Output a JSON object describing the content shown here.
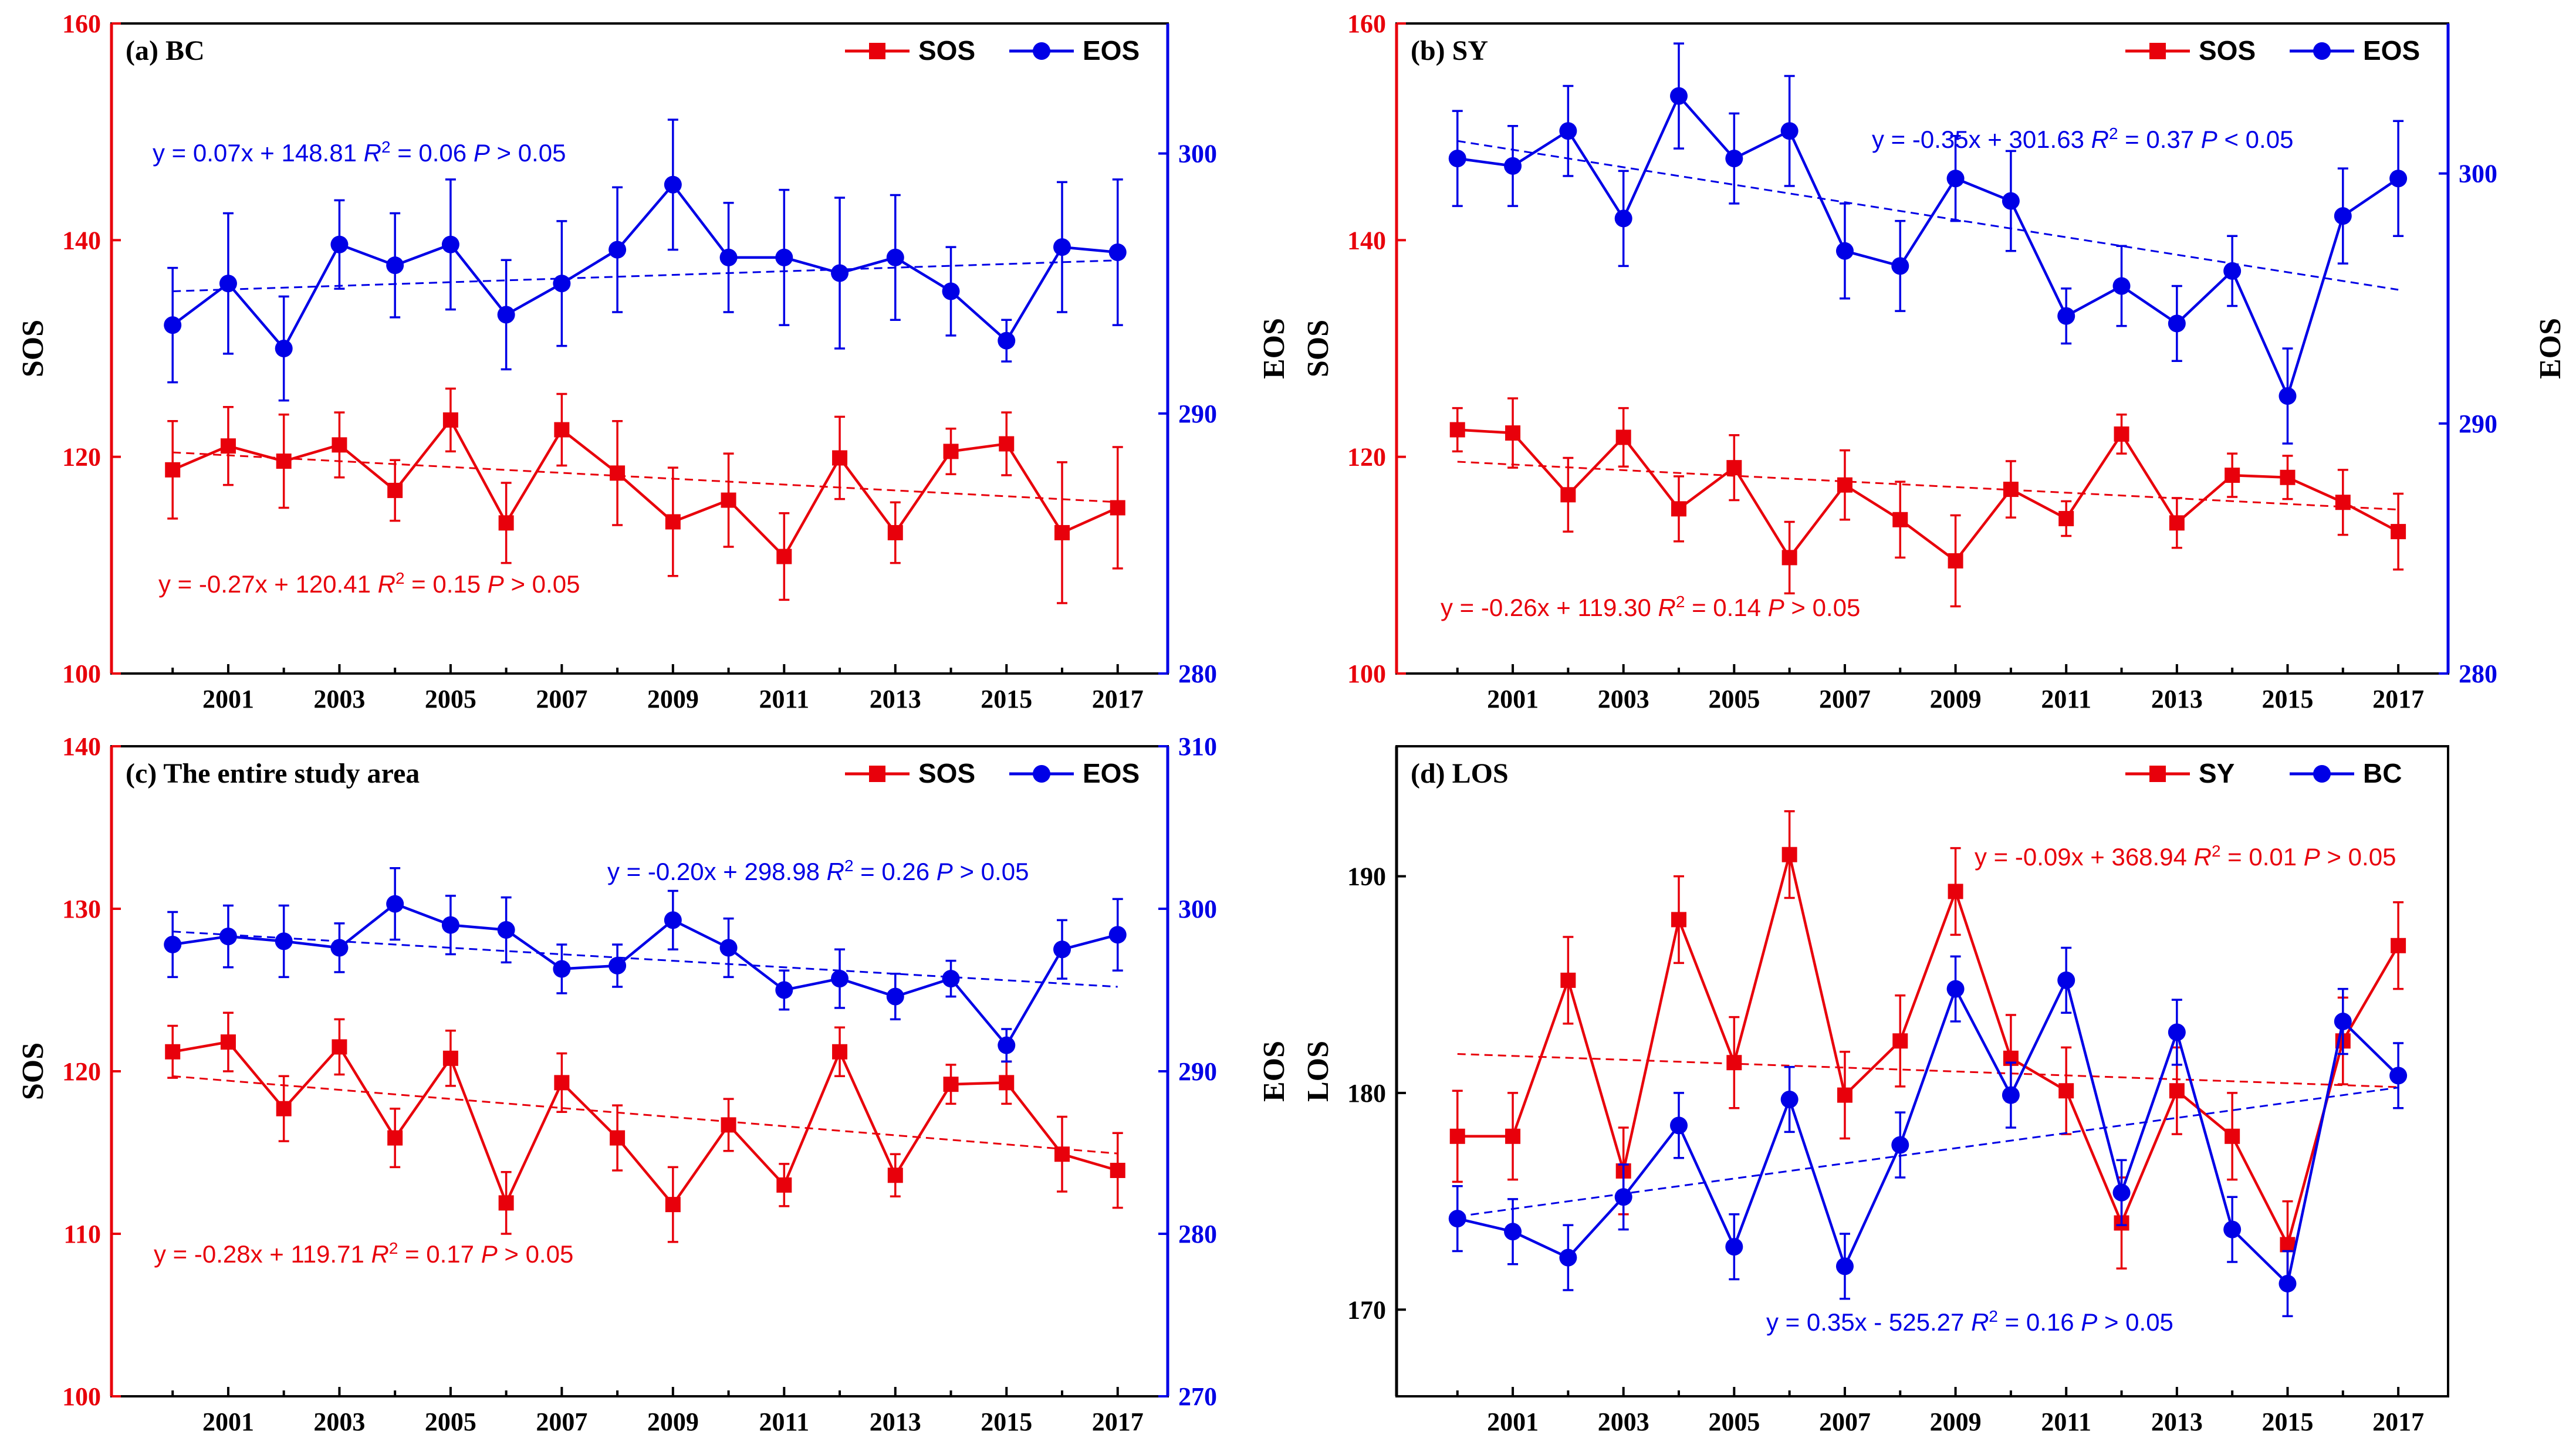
{
  "figure": {
    "panels": [
      {
        "id": "a",
        "title": "(a) BC",
        "chart_data": {
          "type": "line",
          "title": "(a) BC",
          "x": [
            2000,
            2001,
            2002,
            2003,
            2004,
            2005,
            2006,
            2007,
            2008,
            2009,
            2010,
            2011,
            2012,
            2013,
            2014,
            2015,
            2016,
            2017
          ],
          "xticks": [
            2001,
            2003,
            2005,
            2007,
            2009,
            2011,
            2013,
            2015,
            2017
          ],
          "xlim": [
            1998.9,
            2017.9
          ],
          "left_axis": {
            "label": "SOS",
            "ylim": [
              100,
              160
            ],
            "ticks": [
              100,
              120,
              140,
              160
            ],
            "color": "#e8000b"
          },
          "right_axis": {
            "label": "EOS",
            "ylim": [
              280,
              305
            ],
            "ticks": [
              280,
              290,
              300
            ],
            "color": "#0000e6"
          },
          "series": [
            {
              "name": "SOS",
              "axis": "left",
              "color": "#e8000b",
              "marker": "square",
              "values": [
                118.8,
                121.0,
                119.6,
                121.1,
                116.9,
                123.4,
                113.9,
                122.5,
                118.5,
                114.0,
                116.0,
                110.8,
                119.9,
                113.0,
                120.5,
                121.2,
                113.0,
                115.3
              ],
              "errors": [
                4.5,
                3.6,
                4.3,
                3.0,
                2.8,
                2.9,
                3.7,
                3.3,
                4.8,
                5.0,
                4.3,
                4.0,
                3.8,
                2.8,
                2.1,
                2.9,
                6.5,
                5.6
              ],
              "trend": {
                "slope": -0.27,
                "intercept_at_2000": 120.41
              }
            },
            {
              "name": "EOS",
              "axis": "right",
              "color": "#0000e6",
              "marker": "circle",
              "values": [
                293.4,
                295.0,
                292.5,
                296.5,
                295.7,
                296.5,
                293.8,
                295.0,
                296.3,
                298.8,
                296.0,
                296.0,
                295.4,
                296.0,
                294.7,
                292.8,
                296.4,
                296.2
              ],
              "errors": [
                2.2,
                2.7,
                2.0,
                1.7,
                2.0,
                2.5,
                2.1,
                2.4,
                2.4,
                2.5,
                2.1,
                2.6,
                2.9,
                2.4,
                1.7,
                0.8,
                2.5,
                2.8
              ],
              "trend": {
                "slope": 0.07,
                "intercept_at_2000": 294.7
              }
            }
          ],
          "legend": [
            "SOS",
            "EOS"
          ],
          "legend_position": "top-right",
          "annotations": [
            {
              "series": "EOS",
              "equation": "y = 0.07x + 148.81",
              "r2_label": "R",
              "r2_sup": "2",
              "r2_value": " = 0.06 ",
              "p_label": "P",
              "p_value": " > 0.05",
              "color": "#0000e6"
            },
            {
              "series": "SOS",
              "equation": "y = -0.27x + 120.41",
              "r2_label": "R",
              "r2_sup": "2",
              "r2_value": " = 0.15 ",
              "p_label": "P",
              "p_value": " > 0.05",
              "color": "#e8000b"
            }
          ]
        }
      },
      {
        "id": "b",
        "title": "(b) SY",
        "chart_data": {
          "type": "line",
          "title": "(b) SY",
          "x": [
            2000,
            2001,
            2002,
            2003,
            2004,
            2005,
            2006,
            2007,
            2008,
            2009,
            2010,
            2011,
            2012,
            2013,
            2014,
            2015,
            2016,
            2017
          ],
          "xticks": [
            2001,
            2003,
            2005,
            2007,
            2009,
            2011,
            2013,
            2015,
            2017
          ],
          "xlim": [
            1998.9,
            2017.9
          ],
          "left_axis": {
            "label": "SOS",
            "ylim": [
              100,
              160
            ],
            "ticks": [
              100,
              120,
              140,
              160
            ],
            "color": "#e8000b"
          },
          "right_axis": {
            "label": "EOS",
            "ylim": [
              280,
              306
            ],
            "ticks": [
              280,
              290,
              300
            ],
            "color": "#0000e6"
          },
          "series": [
            {
              "name": "SOS",
              "axis": "left",
              "color": "#e8000b",
              "marker": "square",
              "values": [
                122.5,
                122.2,
                116.5,
                121.8,
                115.2,
                119.0,
                110.7,
                117.4,
                114.2,
                110.4,
                117.0,
                114.3,
                122.1,
                113.9,
                118.3,
                118.1,
                115.8,
                113.1
              ],
              "errors": [
                2.0,
                3.2,
                3.4,
                2.7,
                3.0,
                3.0,
                3.3,
                3.2,
                3.5,
                4.2,
                2.6,
                1.6,
                1.8,
                2.3,
                2.0,
                2.0,
                3.0,
                3.5
              ],
              "trend": {
                "slope": -0.26,
                "intercept_at_2000": 119.55
              }
            },
            {
              "name": "EOS",
              "axis": "right",
              "color": "#0000e6",
              "marker": "circle",
              "values": [
                300.6,
                300.3,
                301.7,
                298.2,
                303.1,
                300.6,
                301.7,
                296.9,
                296.3,
                299.8,
                298.9,
                294.3,
                295.5,
                294.0,
                296.1,
                291.1,
                298.3,
                299.8
              ],
              "errors": [
                1.9,
                1.6,
                1.8,
                1.9,
                2.1,
                1.8,
                2.2,
                1.9,
                1.8,
                1.7,
                2.0,
                1.1,
                1.6,
                1.5,
                1.4,
                1.9,
                1.9,
                2.3
              ],
              "trend": {
                "slope": -0.35,
                "intercept_at_2000": 301.3
              }
            }
          ],
          "legend": [
            "SOS",
            "EOS"
          ],
          "legend_position": "top-right",
          "annotations": [
            {
              "series": "EOS",
              "equation": "y = -0.35x + 301.63",
              "r2_label": "R",
              "r2_sup": "2",
              "r2_value": " = 0.37 ",
              "p_label": "P",
              "p_value": " < 0.05",
              "color": "#0000e6"
            },
            {
              "series": "SOS",
              "equation": "y = -0.26x + 119.30",
              "r2_label": "R",
              "r2_sup": "2",
              "r2_value": " = 0.14 ",
              "p_label": "P",
              "p_value": " > 0.05",
              "color": "#e8000b"
            }
          ]
        }
      },
      {
        "id": "c",
        "title": "(c) The entire study area",
        "chart_data": {
          "type": "line",
          "title": "(c) The entire study area",
          "x": [
            2000,
            2001,
            2002,
            2003,
            2004,
            2005,
            2006,
            2007,
            2008,
            2009,
            2010,
            2011,
            2012,
            2013,
            2014,
            2015,
            2016,
            2017
          ],
          "xticks": [
            2001,
            2003,
            2005,
            2007,
            2009,
            2011,
            2013,
            2015,
            2017
          ],
          "xlim": [
            1998.9,
            2017.9
          ],
          "left_axis": {
            "label": "SOS",
            "ylim": [
              100,
              140
            ],
            "ticks": [
              100,
              110,
              120,
              130,
              140
            ],
            "color": "#e8000b"
          },
          "right_axis": {
            "label": "EOS",
            "ylim": [
              270,
              310
            ],
            "ticks": [
              270,
              280,
              290,
              300,
              310
            ],
            "color": "#0000e6"
          },
          "series": [
            {
              "name": "SOS",
              "axis": "left",
              "color": "#e8000b",
              "marker": "square",
              "values": [
                121.2,
                121.8,
                117.7,
                121.5,
                115.9,
                120.8,
                111.9,
                119.3,
                115.9,
                111.8,
                116.7,
                113.0,
                121.2,
                113.6,
                119.2,
                119.3,
                114.9,
                113.9
              ],
              "errors": [
                1.6,
                1.8,
                2.0,
                1.7,
                1.8,
                1.7,
                1.9,
                1.8,
                2.0,
                2.3,
                1.6,
                1.3,
                1.5,
                1.3,
                1.2,
                1.3,
                2.3,
                2.3
              ],
              "trend": {
                "slope": -0.28,
                "intercept_at_2000": 119.7
              }
            },
            {
              "name": "EOS",
              "axis": "right",
              "color": "#0000e6",
              "marker": "circle",
              "values": [
                297.8,
                298.3,
                298.0,
                297.6,
                300.3,
                299.0,
                298.7,
                296.3,
                296.5,
                299.3,
                297.6,
                295.0,
                295.7,
                294.6,
                295.7,
                291.6,
                297.5,
                298.4
              ],
              "errors": [
                2.0,
                1.9,
                2.2,
                1.5,
                2.2,
                1.8,
                2.0,
                1.5,
                1.3,
                1.8,
                1.8,
                1.2,
                1.8,
                1.4,
                1.1,
                1.0,
                1.8,
                2.2
              ],
              "trend": {
                "slope": -0.2,
                "intercept_at_2000": 298.6
              }
            }
          ],
          "legend": [
            "SOS",
            "EOS"
          ],
          "legend_position": "top-right",
          "annotations": [
            {
              "series": "EOS",
              "equation": "y = -0.20x + 298.98",
              "r2_label": "R",
              "r2_sup": "2",
              "r2_value": " = 0.26 ",
              "p_label": "P",
              "p_value": " > 0.05",
              "color": "#0000e6"
            },
            {
              "series": "SOS",
              "equation": "y = -0.28x + 119.71",
              "r2_label": "R",
              "r2_sup": "2",
              "r2_value": " = 0.17 ",
              "p_label": "P",
              "p_value": " > 0.05",
              "color": "#e8000b"
            }
          ]
        }
      },
      {
        "id": "d",
        "title": "(d) LOS",
        "chart_data": {
          "type": "line",
          "title": "(d) LOS",
          "x": [
            2000,
            2001,
            2002,
            2003,
            2004,
            2005,
            2006,
            2007,
            2008,
            2009,
            2010,
            2011,
            2012,
            2013,
            2014,
            2015,
            2016,
            2017
          ],
          "xticks": [
            2001,
            2003,
            2005,
            2007,
            2009,
            2011,
            2013,
            2015,
            2017
          ],
          "xlim": [
            1998.9,
            2017.9
          ],
          "left_axis": {
            "label": "LOS",
            "ylim": [
              166,
              196
            ],
            "ticks": [
              170,
              180,
              190
            ],
            "color": "#000000"
          },
          "series": [
            {
              "name": "SY",
              "axis": "left",
              "color": "#e8000b",
              "marker": "square",
              "values": [
                178.0,
                178.0,
                185.2,
                176.4,
                188.0,
                181.4,
                191.0,
                179.9,
                182.4,
                189.3,
                181.6,
                180.1,
                174.0,
                180.1,
                178.0,
                173.0,
                182.4,
                186.8
              ],
              "errors": [
                2.1,
                2.0,
                2.0,
                2.0,
                2.0,
                2.1,
                2.0,
                2.0,
                2.1,
                2.0,
                2.0,
                2.0,
                2.1,
                2.0,
                2.0,
                2.0,
                2.0,
                2.0
              ],
              "trend": {
                "slope": -0.09,
                "intercept_at_2000": 181.8
              }
            },
            {
              "name": "BC",
              "axis": "left",
              "color": "#0000e6",
              "marker": "circle",
              "values": [
                174.2,
                173.6,
                172.4,
                175.2,
                178.5,
                172.9,
                179.7,
                172.0,
                177.6,
                184.8,
                179.9,
                185.2,
                175.4,
                182.8,
                173.7,
                171.2,
                183.3,
                180.8
              ],
              "errors": [
                1.5,
                1.5,
                1.5,
                1.5,
                1.5,
                1.5,
                1.5,
                1.5,
                1.5,
                1.5,
                1.5,
                1.5,
                1.5,
                1.5,
                1.5,
                1.5,
                1.5,
                1.5
              ],
              "trend": {
                "slope": 0.35,
                "intercept_at_2000": 174.3
              }
            }
          ],
          "legend": [
            "SY",
            "BC"
          ],
          "legend_position": "top-right",
          "annotations": [
            {
              "series": "SY",
              "equation": "y = -0.09x + 368.94",
              "r2_label": "R",
              "r2_sup": "2",
              "r2_value": " = 0.01 ",
              "p_label": "P",
              "p_value": " > 0.05",
              "color": "#e8000b"
            },
            {
              "series": "BC",
              "equation": "y = 0.35x - 525.27",
              "r2_label": "R",
              "r2_sup": "2",
              "r2_value": " = 0.16 ",
              "p_label": "P",
              "p_value": " > 0.05",
              "color": "#0000e6"
            }
          ]
        }
      }
    ]
  }
}
